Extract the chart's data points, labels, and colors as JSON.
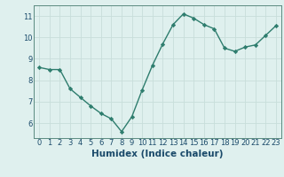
{
  "x": [
    0,
    1,
    2,
    3,
    4,
    5,
    6,
    7,
    8,
    9,
    10,
    11,
    12,
    13,
    14,
    15,
    16,
    17,
    18,
    19,
    20,
    21,
    22,
    23
  ],
  "y": [
    8.6,
    8.5,
    8.5,
    7.6,
    7.2,
    6.8,
    6.45,
    6.2,
    5.6,
    6.3,
    7.55,
    8.7,
    9.7,
    10.6,
    11.1,
    10.9,
    10.6,
    10.4,
    9.5,
    9.35,
    9.55,
    9.65,
    10.1,
    10.55
  ],
  "line_color": "#2e7d6e",
  "marker": "D",
  "marker_size": 2.2,
  "bg_color": "#dff0ee",
  "grid_color": "#c8deda",
  "xlabel": "Humidex (Indice chaleur)",
  "xlabel_fontsize": 7.5,
  "xlim": [
    -0.5,
    23.5
  ],
  "ylim": [
    5.3,
    11.5
  ],
  "yticks": [
    6,
    7,
    8,
    9,
    10,
    11
  ],
  "xticks": [
    0,
    1,
    2,
    3,
    4,
    5,
    6,
    7,
    8,
    9,
    10,
    11,
    12,
    13,
    14,
    15,
    16,
    17,
    18,
    19,
    20,
    21,
    22,
    23
  ],
  "tick_fontsize": 6.0,
  "line_width": 1.0,
  "spine_color": "#5a8a80",
  "xlabel_color": "#1a4a6a",
  "xlabel_bold": true
}
